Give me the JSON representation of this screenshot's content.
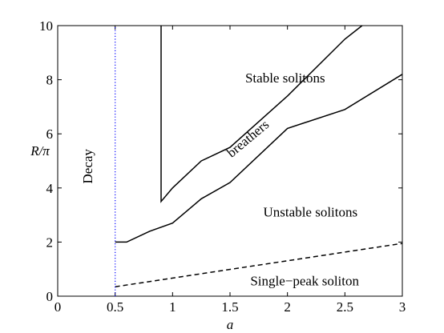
{
  "chart_data": {
    "type": "line",
    "xlabel": "a",
    "ylabel": "R/π",
    "xlim": [
      0,
      3
    ],
    "ylim": [
      0,
      10
    ],
    "x_ticks": [
      "0",
      "0.5",
      "1",
      "1.5",
      "2",
      "2.5",
      "3"
    ],
    "y_ticks": [
      "0",
      "2",
      "4",
      "6",
      "8",
      "10"
    ],
    "grid": false,
    "series": [
      {
        "style": "solid",
        "color": "#000000",
        "points": [
          [
            0.9,
            10
          ],
          [
            0.9,
            3.5
          ],
          [
            1.0,
            4.0
          ],
          [
            1.25,
            5.0
          ],
          [
            1.5,
            5.5
          ],
          [
            2.0,
            7.4
          ],
          [
            2.5,
            9.5
          ],
          [
            2.65,
            10
          ]
        ]
      },
      {
        "style": "solid",
        "color": "#000000",
        "points": [
          [
            0.5,
            2.0
          ],
          [
            0.6,
            2.0
          ],
          [
            0.8,
            2.4
          ],
          [
            1.0,
            2.7
          ],
          [
            1.25,
            3.6
          ],
          [
            1.5,
            4.2
          ],
          [
            2.0,
            6.2
          ],
          [
            2.5,
            6.9
          ],
          [
            3.0,
            8.2
          ]
        ]
      },
      {
        "style": "dashed",
        "color": "#000000",
        "points": [
          [
            0.5,
            0.35
          ],
          [
            3.0,
            1.95
          ]
        ]
      },
      {
        "style": "dotted",
        "color": "#0000ff",
        "points": [
          [
            0.5,
            0
          ],
          [
            0.5,
            10
          ]
        ]
      }
    ],
    "annotations": [
      {
        "text": "Stable solitons",
        "x": 1.98,
        "y": 7.9,
        "rotate": 0
      },
      {
        "text": "breathers",
        "x": 1.68,
        "y": 5.7,
        "rotate": -40
      },
      {
        "text": "Unstable solitons",
        "x": 2.2,
        "y": 2.95,
        "rotate": 0
      },
      {
        "text": "Single−peak soliton",
        "x": 2.15,
        "y": 0.4,
        "rotate": 0
      },
      {
        "text": "Decay",
        "x": 0.3,
        "y": 4.8,
        "rotate": -90
      }
    ]
  }
}
